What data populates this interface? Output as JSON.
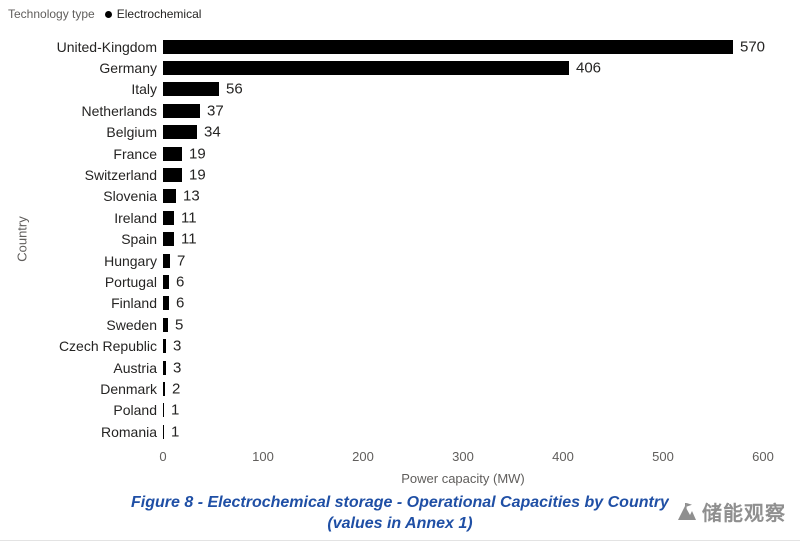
{
  "legend": {
    "title": "Technology type",
    "item": "Electrochemical"
  },
  "chart_data": {
    "type": "bar",
    "orientation": "horizontal",
    "title": "",
    "xlabel": "Power capacity (MW)",
    "ylabel": "Country",
    "xlim": [
      0,
      600
    ],
    "xticks": [
      0,
      100,
      200,
      300,
      400,
      500,
      600
    ],
    "grid": false,
    "legend_position": "top-left",
    "bar_color": "#000000",
    "categories": [
      "United-Kingdom",
      "Germany",
      "Italy",
      "Netherlands",
      "Belgium",
      "France",
      "Switzerland",
      "Slovenia",
      "Ireland",
      "Spain",
      "Hungary",
      "Portugal",
      "Finland",
      "Sweden",
      "Czech Republic",
      "Austria",
      "Denmark",
      "Poland",
      "Romania"
    ],
    "values": [
      570,
      406,
      56,
      37,
      34,
      19,
      19,
      13,
      11,
      11,
      7,
      6,
      6,
      5,
      3,
      3,
      2,
      1,
      1
    ]
  },
  "caption": {
    "line1": "Figure 8 - Electrochemical storage - Operational Capacities by Country",
    "line2": "(values in Annex 1)"
  },
  "watermark": {
    "text": "储能观察"
  },
  "colors": {
    "bar": "#000000",
    "caption_blue": "#1F4FA5",
    "axis_gray": "#605E5C",
    "label_dark": "#252423"
  }
}
